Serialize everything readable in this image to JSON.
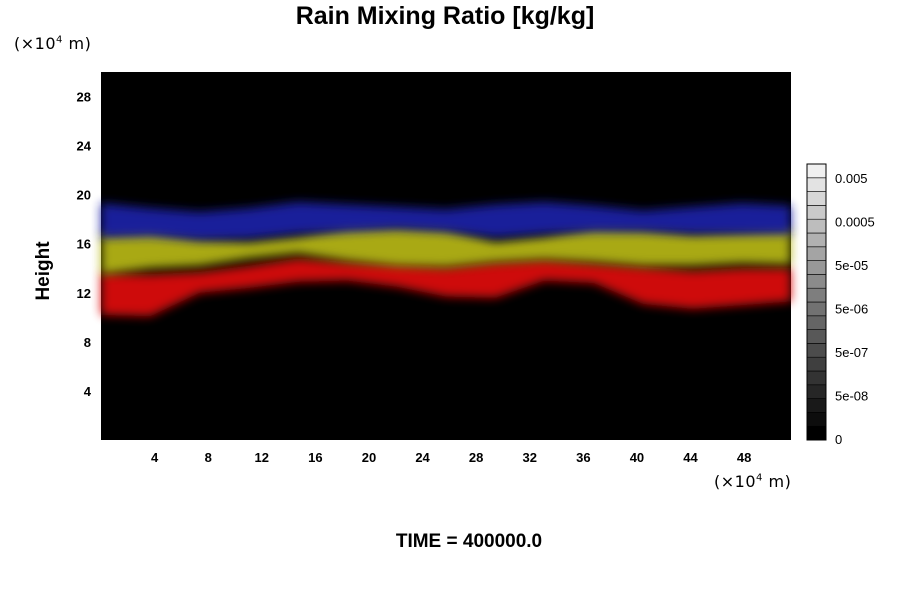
{
  "chart_data": {
    "type": "heatmap",
    "title": "Rain Mixing Ratio [kg/kg]",
    "ylabel": "Height",
    "y_unit_label": "(×10",
    "y_unit_exp": "4",
    "y_unit_suffix": " m)",
    "x_unit_label": "(×10",
    "x_unit_exp": "4",
    "x_unit_suffix": " m)",
    "xlim": [
      0,
      51.5
    ],
    "ylim": [
      0,
      30
    ],
    "x_ticks": [
      4,
      8,
      12,
      16,
      20,
      24,
      28,
      32,
      36,
      40,
      44,
      48
    ],
    "y_ticks": [
      4,
      8,
      12,
      16,
      20,
      24,
      28
    ],
    "colorbar_labels": [
      "0.005",
      "0.0005",
      "5e-05",
      "5e-06",
      "5e-07",
      "5e-08",
      "0"
    ],
    "colorbar_levels": 20,
    "layers": [
      {
        "color": "#e01010",
        "bottom": [
          10.2,
          10.1,
          12.0,
          12.4,
          12.9,
          13.0,
          12.5,
          11.7,
          11.6,
          13.0,
          12.8,
          11.1,
          10.7,
          11.0,
          11.3
        ],
        "top": [
          13.6,
          13.5,
          13.7,
          14.2,
          14.8,
          14.5,
          14.3,
          14.1,
          14.5,
          14.7,
          14.4,
          14.1,
          13.8,
          14.0,
          14.0
        ]
      },
      {
        "color": "#b8b818",
        "bottom": [
          13.5,
          14.0,
          14.2,
          14.8,
          15.2,
          14.6,
          14.2,
          14.1,
          14.5,
          14.7,
          14.5,
          14.2,
          14.2,
          14.4,
          14.3
        ],
        "top": [
          16.8,
          17.0,
          16.4,
          16.2,
          16.6,
          17.3,
          17.4,
          17.2,
          16.2,
          16.6,
          17.3,
          17.2,
          16.8,
          17.0,
          17.2
        ]
      },
      {
        "color": "#1c22a8",
        "bottom": [
          16.5,
          16.6,
          16.3,
          16.4,
          16.8,
          17.0,
          17.2,
          17.0,
          16.5,
          16.8,
          17.0,
          17.0,
          16.8,
          16.8,
          16.8
        ],
        "top": [
          19.3,
          18.9,
          18.6,
          18.9,
          19.4,
          19.2,
          19.0,
          18.8,
          19.2,
          19.4,
          19.1,
          18.7,
          19.0,
          19.3,
          19.1
        ]
      }
    ],
    "time_label": "TIME = 400000.0"
  }
}
